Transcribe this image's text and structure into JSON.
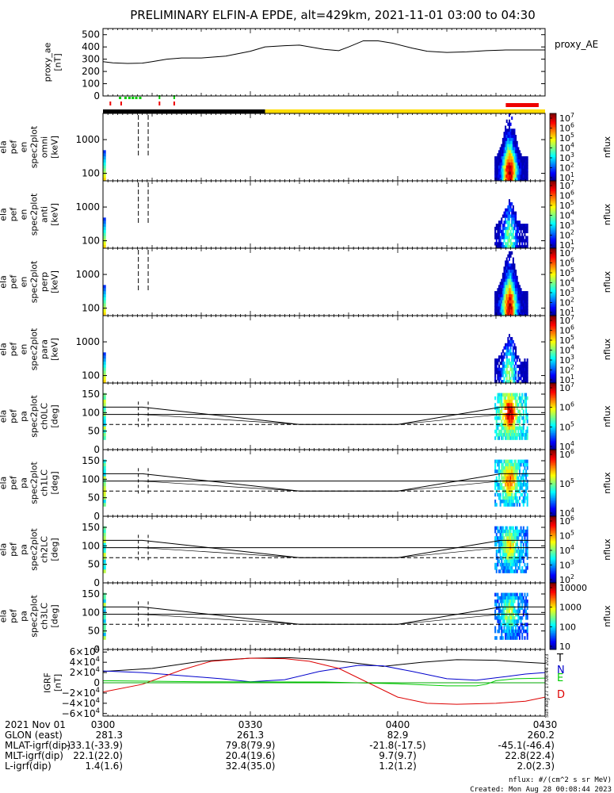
{
  "title": "PRELIMINARY ELFIN-A EPDE, alt=429km, 2021-11-01 03:00 to 04:30",
  "chart_data": [
    {
      "type": "line",
      "id": "proxy_ae",
      "ylabel_lines": [
        "proxy_ae",
        "[nT]"
      ],
      "legend": "proxy_AE",
      "ylim": [
        0,
        550
      ],
      "yticks": [
        "500",
        "400",
        "300",
        "200",
        "100",
        "0"
      ],
      "x_minutes": [
        0,
        2,
        5,
        8,
        10,
        13,
        16,
        20,
        25,
        30,
        33,
        37,
        40,
        45,
        48,
        50,
        53,
        56,
        59,
        63,
        66,
        70,
        74,
        78,
        82,
        86,
        90
      ],
      "values": [
        280,
        270,
        265,
        268,
        280,
        300,
        310,
        310,
        325,
        365,
        400,
        410,
        415,
        380,
        370,
        400,
        450,
        450,
        430,
        390,
        365,
        355,
        360,
        370,
        375,
        375,
        375
      ]
    },
    {
      "type": "heatmap",
      "id": "spec_omni",
      "ylabel_lines": [
        "ela",
        "pef",
        "en",
        "spec2plot",
        "omni",
        "[keV]"
      ],
      "yscale": "log",
      "yticks": [
        "1000",
        "100"
      ],
      "colorbar": {
        "label": "nflux",
        "ticks": [
          "10^7",
          "10^6",
          "10^5",
          "10^4",
          "10^3",
          "10^2",
          "10^1"
        ]
      },
      "peak_energy_keV": 100,
      "active_minutes": [
        [
          0,
          0.6
        ],
        [
          79.7,
          86.5
        ]
      ]
    },
    {
      "type": "heatmap",
      "id": "spec_anti",
      "ylabel_lines": [
        "ela",
        "pef",
        "en",
        "spec2plot",
        "anti",
        "[keV]"
      ],
      "yscale": "log",
      "yticks": [
        "1000",
        "100"
      ],
      "colorbar": {
        "label": "nflux",
        "ticks": [
          "10^7",
          "10^6",
          "10^5",
          "10^4",
          "10^3",
          "10^2",
          "10^1"
        ]
      },
      "active_minutes": [
        [
          0,
          0.6
        ],
        [
          79.7,
          86.5
        ]
      ]
    },
    {
      "type": "heatmap",
      "id": "spec_perp",
      "ylabel_lines": [
        "ela",
        "pef",
        "en",
        "spec2plot",
        "perp",
        "[keV]"
      ],
      "yscale": "log",
      "yticks": [
        "1000",
        "100"
      ],
      "colorbar": {
        "label": "nflux",
        "ticks": [
          "10^7",
          "10^6",
          "10^5",
          "10^4",
          "10^3",
          "10^2",
          "10^1"
        ]
      },
      "active_minutes": [
        [
          0,
          0.6
        ],
        [
          79.7,
          86.5
        ]
      ]
    },
    {
      "type": "heatmap",
      "id": "spec_para",
      "ylabel_lines": [
        "ela",
        "pef",
        "en",
        "spec2plot",
        "para",
        "[keV]"
      ],
      "yscale": "log",
      "yticks": [
        "1000",
        "100"
      ],
      "colorbar": {
        "label": "nflux",
        "ticks": [
          "10^7",
          "10^6",
          "10^5",
          "10^4",
          "10^3",
          "10^2",
          "10^1"
        ]
      },
      "active_minutes": [
        [
          0,
          0.6
        ],
        [
          79.7,
          86.5
        ]
      ]
    },
    {
      "type": "heatmap",
      "id": "pa_ch0",
      "ylabel_lines": [
        "ela",
        "pef",
        "pa",
        "spec2plot",
        "ch0LC",
        "[deg]"
      ],
      "ylim": [
        0,
        180
      ],
      "yticks": [
        "150",
        "100",
        "50",
        "0"
      ],
      "colorbar": {
        "label": "nflux",
        "ticks": [
          "10^7",
          "10^6",
          "10^5",
          "10^4"
        ]
      },
      "active_minutes": [
        [
          0,
          0.6
        ],
        [
          79.7,
          86.5
        ]
      ]
    },
    {
      "type": "heatmap",
      "id": "pa_ch1",
      "ylabel_lines": [
        "ela",
        "pef",
        "pa",
        "spec2plot",
        "ch1LC",
        "[deg]"
      ],
      "ylim": [
        0,
        180
      ],
      "yticks": [
        "150",
        "100",
        "50",
        "0"
      ],
      "colorbar": {
        "label": "nflux",
        "ticks": [
          "10^6",
          "10^5",
          "10^4"
        ]
      },
      "active_minutes": [
        [
          0,
          0.6
        ],
        [
          79.7,
          86.5
        ]
      ]
    },
    {
      "type": "heatmap",
      "id": "pa_ch2",
      "ylabel_lines": [
        "ela",
        "pef",
        "pa",
        "spec2plot",
        "ch2LC",
        "[deg]"
      ],
      "ylim": [
        0,
        180
      ],
      "yticks": [
        "150",
        "100",
        "50",
        "0"
      ],
      "colorbar": {
        "label": "nflux",
        "ticks": [
          "10^6",
          "10^5",
          "10^4",
          "10^3",
          "10^2"
        ]
      },
      "active_minutes": [
        [
          0,
          0.6
        ],
        [
          79.7,
          86.5
        ]
      ]
    },
    {
      "type": "heatmap",
      "id": "pa_ch3",
      "ylabel_lines": [
        "ela",
        "pef",
        "pa",
        "spec2plot",
        "ch3LC",
        "[deg]"
      ],
      "ylim": [
        0,
        180
      ],
      "yticks": [
        "150",
        "100",
        "50",
        "0"
      ],
      "colorbar": {
        "label": "nflux",
        "ticks": [
          "10000",
          "1000",
          "100",
          "10"
        ]
      },
      "active_minutes": [
        [
          0,
          0.6
        ],
        [
          79.7,
          86.5
        ]
      ]
    },
    {
      "type": "line",
      "id": "igrf",
      "ylabel_lines": [
        "IGRF",
        "[nT]"
      ],
      "ylim": [
        -65000,
        65000
      ],
      "yticks": [
        "6×10^4",
        "4×10^4",
        "2×10^4",
        "0",
        "−2×10^4",
        "−4×10^4",
        "−6×10^4"
      ],
      "series": [
        {
          "name": "T",
          "color": "#000000",
          "x_minutes": [
            0,
            10,
            20,
            30,
            38,
            45,
            50,
            57,
            65,
            72,
            80,
            86,
            90
          ],
          "values": [
            22000,
            28000,
            42000,
            48000,
            49000,
            45000,
            40000,
            32000,
            40000,
            45000,
            44000,
            40000,
            38000
          ]
        },
        {
          "name": "N",
          "color": "#0000cc",
          "x_minutes": [
            0,
            8,
            16,
            24,
            30,
            37,
            44,
            52,
            57,
            63,
            70,
            76,
            82,
            86,
            90
          ],
          "values": [
            23000,
            20000,
            14000,
            8000,
            2000,
            6000,
            22000,
            34000,
            33000,
            22000,
            8000,
            5000,
            12000,
            17000,
            20000
          ]
        },
        {
          "name": "E",
          "color": "#00cc00",
          "x_minutes": [
            0,
            20,
            45,
            60,
            70,
            76,
            78,
            80,
            84,
            90
          ],
          "values": [
            4000,
            2000,
            1500,
            -2000,
            -6000,
            -6000,
            -3000,
            4000,
            8000,
            9000
          ]
        },
        {
          "name": "D",
          "color": "#dd0000",
          "x_minutes": [
            0,
            8,
            16,
            22,
            30,
            37,
            42,
            48,
            54,
            60,
            66,
            72,
            80,
            86,
            90
          ],
          "values": [
            -18000,
            -3000,
            25000,
            42000,
            48000,
            47000,
            42000,
            28000,
            0,
            -28000,
            -40000,
            -42000,
            -40000,
            -36000,
            -28000
          ]
        }
      ]
    }
  ],
  "x_axis": {
    "row_labels": [
      "2021 Nov 01",
      "GLON (east)",
      "MLAT-igrf(dip)",
      "MLT-igrf(dip)",
      "L-igrf(dip)"
    ],
    "columns": [
      [
        "0300",
        "281.3",
        "-33.1(-33.9)",
        "22.1(22.0)",
        "1.4(1.6)"
      ],
      [
        "0330",
        "261.3",
        "79.8(79.9)",
        "20.4(19.6)",
        "32.4(35.0)"
      ],
      [
        "0400",
        "82.9",
        "-21.8(-17.5)",
        "9.7(9.7)",
        "1.2(1.2)"
      ],
      [
        "0430",
        "260.2",
        "-45.1(-46.4)",
        "22.8(22.4)",
        "2.0(2.3)"
      ]
    ]
  },
  "footer": {
    "units": "nflux: #/(cm^2 s sr MeV)",
    "created": "Created: Mon Aug 28 00:08:44 2023",
    "side_stamp": "Sun Aug 27 17:08:44 2023"
  },
  "colors": {
    "orbit_dark": "#000000",
    "orbit_sunlit": "#ffdd00",
    "science_zone": "#ee0000",
    "marker_green": "#00cc00",
    "marker_red": "#ee0000"
  }
}
